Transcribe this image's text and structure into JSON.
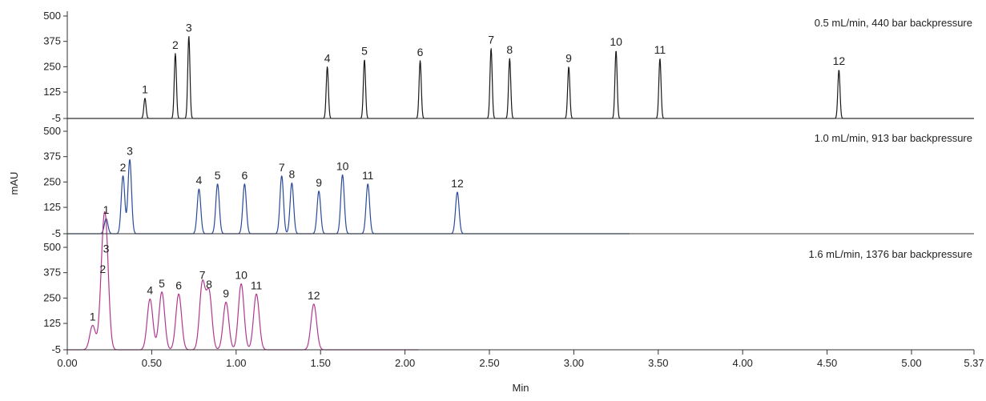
{
  "chart_data": {
    "type": "line",
    "title": "",
    "xlabel": "Min",
    "ylabel": "mAU",
    "xlim": [
      0,
      5.37
    ],
    "ylim": [
      -5,
      500
    ],
    "x_ticks": [
      "0.00",
      "0.50",
      "1.00",
      "1.50",
      "2.00",
      "2.50",
      "3.00",
      "3.50",
      "4.00",
      "4.50",
      "5.00",
      "5.37"
    ],
    "y_ticks": [
      "500",
      "375",
      "250",
      "125",
      "-5"
    ],
    "grid": false,
    "panels": [
      {
        "condition": "0.5 mL/min, 440 bar backpressure",
        "color": "#1a1a1a",
        "run_end": 5.37,
        "peaks": [
          {
            "label": "1",
            "x": 0.46,
            "y": 95
          },
          {
            "label": "2",
            "x": 0.64,
            "y": 315
          },
          {
            "label": "3",
            "x": 0.72,
            "y": 400
          },
          {
            "label": "4",
            "x": 1.54,
            "y": 250
          },
          {
            "label": "5",
            "x": 1.76,
            "y": 285
          },
          {
            "label": "6",
            "x": 2.09,
            "y": 280
          },
          {
            "label": "7",
            "x": 2.51,
            "y": 340
          },
          {
            "label": "8",
            "x": 2.62,
            "y": 290
          },
          {
            "label": "9",
            "x": 2.97,
            "y": 250
          },
          {
            "label": "10",
            "x": 3.25,
            "y": 330
          },
          {
            "label": "11",
            "x": 3.51,
            "y": 290
          },
          {
            "label": "12",
            "x": 4.57,
            "y": 235
          }
        ]
      },
      {
        "condition": "1.0 mL/min, 913 bar backpressure",
        "color": "#2b4a9a",
        "run_end": 3.33,
        "peaks": [
          {
            "label": "1",
            "x": 0.23,
            "y": 70
          },
          {
            "label": "2",
            "x": 0.33,
            "y": 280
          },
          {
            "label": "3",
            "x": 0.37,
            "y": 360
          },
          {
            "label": "4",
            "x": 0.78,
            "y": 215
          },
          {
            "label": "5",
            "x": 0.89,
            "y": 240
          },
          {
            "label": "6",
            "x": 1.05,
            "y": 240
          },
          {
            "label": "7",
            "x": 1.27,
            "y": 280
          },
          {
            "label": "8",
            "x": 1.33,
            "y": 245
          },
          {
            "label": "9",
            "x": 1.49,
            "y": 205
          },
          {
            "label": "10",
            "x": 1.63,
            "y": 285
          },
          {
            "label": "11",
            "x": 1.78,
            "y": 240
          },
          {
            "label": "12",
            "x": 2.31,
            "y": 200
          }
        ]
      },
      {
        "condition": "1.6 mL/min, 1376 bar backpressure",
        "color": "#b0388e",
        "run_end": 2.08,
        "peaks": [
          {
            "label": "1",
            "x": 0.15,
            "y": 115
          },
          {
            "label": "2",
            "x": 0.21,
            "y": 350
          },
          {
            "label": "3",
            "x": 0.23,
            "y": 450
          },
          {
            "label": "4",
            "x": 0.49,
            "y": 245
          },
          {
            "label": "5",
            "x": 0.56,
            "y": 280
          },
          {
            "label": "6",
            "x": 0.66,
            "y": 270
          },
          {
            "label": "7",
            "x": 0.8,
            "y": 320
          },
          {
            "label": "8",
            "x": 0.84,
            "y": 275
          },
          {
            "label": "9",
            "x": 0.94,
            "y": 230
          },
          {
            "label": "10",
            "x": 1.03,
            "y": 320
          },
          {
            "label": "11",
            "x": 1.12,
            "y": 270
          },
          {
            "label": "12",
            "x": 1.46,
            "y": 220
          }
        ]
      }
    ]
  }
}
